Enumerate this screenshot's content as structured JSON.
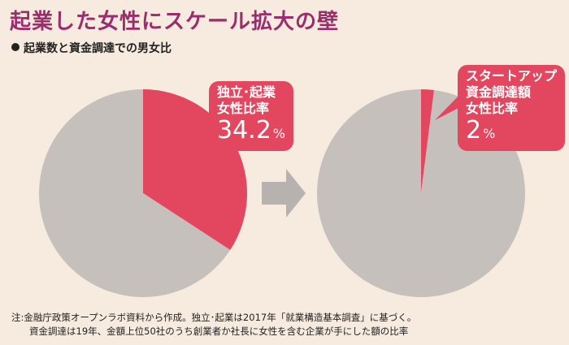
{
  "title": "起業した女性にスケール拡大の壁",
  "subtitle": "起業数と資金調達での男女比",
  "chart_data": [
    {
      "type": "pie",
      "label_lines": [
        "独立･起業",
        "女性比率"
      ],
      "value": "34.2",
      "unit": "%",
      "slices": [
        {
          "name": "女性",
          "value": 34.2,
          "color": "#e2475f"
        },
        {
          "name": "",
          "value": 65.8,
          "color": "#c6c0bc"
        }
      ]
    },
    {
      "type": "pie",
      "label_lines": [
        "スタートアップ",
        "資金調達額",
        "女性比率"
      ],
      "value": "2",
      "unit": "%",
      "slices": [
        {
          "name": "女性",
          "value": 2,
          "color": "#e2475f"
        },
        {
          "name": "",
          "value": 98,
          "color": "#c6c0bc"
        }
      ]
    }
  ],
  "note": {
    "line1": "注:金融庁政策オープンラボ資料から作成。独立･起業は2017年「就業構造基本調査」に基づく。",
    "line2": "資金調達は19年、金額上位50社のうち創業者か社長に女性を含む企業が手にした額の比率"
  },
  "colors": {
    "title": "#9b2d6d",
    "accent": "#e2475f",
    "gray": "#c6c0bc",
    "arrow": "#b7b2af",
    "background": "#f7ebe0"
  }
}
